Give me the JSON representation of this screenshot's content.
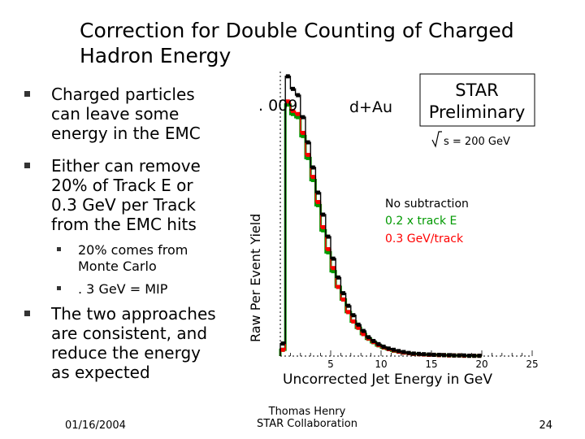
{
  "slide": {
    "title_line1": "Correction for Double Counting of Charged",
    "title_line2": "Hadron Energy",
    "bullets": [
      {
        "lines": [
          "Charged particles",
          "can leave some",
          "energy in the EMC"
        ]
      },
      {
        "lines": [
          "Either can remove",
          "20% of Track E or",
          "0.3 GeV per Track",
          "from the EMC hits"
        ]
      }
    ],
    "sub_bullets": [
      {
        "lines": [
          "20% comes from",
          "Monte Carlo"
        ]
      },
      {
        "lines": [
          ". 3 GeV = MIP"
        ]
      }
    ],
    "bullet3": {
      "lines": [
        "The two approaches",
        "are consistent, and",
        "reduce the energy",
        "as expected"
      ]
    },
    "footer": {
      "date": "01/16/2004",
      "author_line1": "Thomas Henry",
      "author_line2": "STAR Collaboration",
      "page": "24"
    }
  },
  "chart_data": {
    "type": "line",
    "ylabel": "Raw Per Event Yield",
    "xlabel": "Uncorrected Jet Energy in GeV",
    "y_top_label": ". 009",
    "system_label": "d+Au",
    "preliminary_line1": "STAR",
    "preliminary_line2": "Preliminary",
    "energy_label": "s = 200 GeV",
    "xlim": [
      0,
      25
    ],
    "ylim": [
      0,
      0.009
    ],
    "xticks": [
      "5",
      "10",
      "15",
      "20",
      "25"
    ],
    "series": [
      {
        "name": "No subtraction",
        "color": "#000000",
        "x": [
          0.25,
          0.75,
          1.25,
          1.75,
          2.25,
          2.75,
          3.25,
          3.75,
          4.25,
          4.75,
          5.25,
          5.75,
          6.25,
          6.75,
          7.25,
          7.75,
          8.25,
          8.75,
          9.25,
          9.75,
          10.25,
          10.75,
          11.25,
          11.75,
          12.25,
          12.75,
          13.25,
          13.75,
          14.25,
          14.75,
          15.25,
          15.75,
          16.25,
          16.75,
          17.25,
          17.75,
          18.25,
          18.75,
          19.25,
          19.75
        ],
        "y": [
          0.0004,
          0.0089,
          0.0085,
          0.0083,
          0.0076,
          0.0068,
          0.006,
          0.0052,
          0.0045,
          0.0038,
          0.0031,
          0.0025,
          0.002,
          0.0016,
          0.0013,
          0.001,
          0.0008,
          0.0006,
          0.00048,
          0.00038,
          0.0003,
          0.00024,
          0.0002,
          0.00016,
          0.00013,
          0.0001,
          8e-05,
          7e-05,
          6e-05,
          5e-05,
          4e-05,
          4e-05,
          3e-05,
          3e-05,
          2e-05,
          2e-05,
          2e-05,
          1e-05,
          1e-05,
          1e-05
        ]
      },
      {
        "name": "0.2 x track E",
        "color": "#009900",
        "x": [
          0.25,
          0.75,
          1.25,
          1.75,
          2.25,
          2.75,
          3.25,
          3.75,
          4.25,
          4.75,
          5.25,
          5.75,
          6.25,
          6.75,
          7.25,
          7.75,
          8.25,
          8.75,
          9.25,
          9.75,
          10.25,
          10.75,
          11.25,
          11.75,
          12.25,
          12.75,
          13.25,
          13.75,
          14.25,
          14.75,
          15.25,
          15.75,
          16.25,
          16.75,
          17.25,
          17.75,
          18.25,
          18.75,
          19.25,
          19.75
        ],
        "y": [
          0.0002,
          0.008,
          0.0077,
          0.0076,
          0.007,
          0.0063,
          0.0056,
          0.0048,
          0.004,
          0.0033,
          0.0027,
          0.0022,
          0.0018,
          0.0014,
          0.0011,
          0.0009,
          0.0007,
          0.00055,
          0.00044,
          0.00034,
          0.00027,
          0.00022,
          0.00017,
          0.00014,
          0.00011,
          9e-05,
          7e-05,
          6e-05,
          5e-05,
          4e-05,
          4e-05,
          3e-05,
          3e-05,
          2e-05,
          2e-05,
          2e-05,
          1e-05,
          1e-05,
          1e-05,
          1e-05
        ]
      },
      {
        "name": "0.3 GeV/track",
        "color": "#ff0000",
        "x": [
          0.25,
          0.75,
          1.25,
          1.75,
          2.25,
          2.75,
          3.25,
          3.75,
          4.25,
          4.75,
          5.25,
          5.75,
          6.25,
          6.75,
          7.25,
          7.75,
          8.25,
          8.75,
          9.25,
          9.75,
          10.25,
          10.75,
          11.25,
          11.75,
          12.25,
          12.75,
          13.25,
          13.75,
          14.25,
          14.75,
          15.25,
          15.75,
          16.25,
          16.75,
          17.25,
          17.75,
          18.25,
          18.75,
          19.25,
          19.75
        ],
        "y": [
          0.0002,
          0.0081,
          0.0078,
          0.0077,
          0.0071,
          0.0064,
          0.0057,
          0.0049,
          0.0041,
          0.0034,
          0.0028,
          0.0022,
          0.0018,
          0.0014,
          0.0011,
          0.0009,
          0.0007,
          0.00056,
          0.00045,
          0.00035,
          0.00028,
          0.00022,
          0.00018,
          0.00014,
          0.00011,
          9e-05,
          7e-05,
          6e-05,
          5e-05,
          4e-05,
          4e-05,
          3e-05,
          3e-05,
          2e-05,
          2e-05,
          2e-05,
          1e-05,
          1e-05,
          1e-05,
          1e-05
        ]
      }
    ]
  }
}
